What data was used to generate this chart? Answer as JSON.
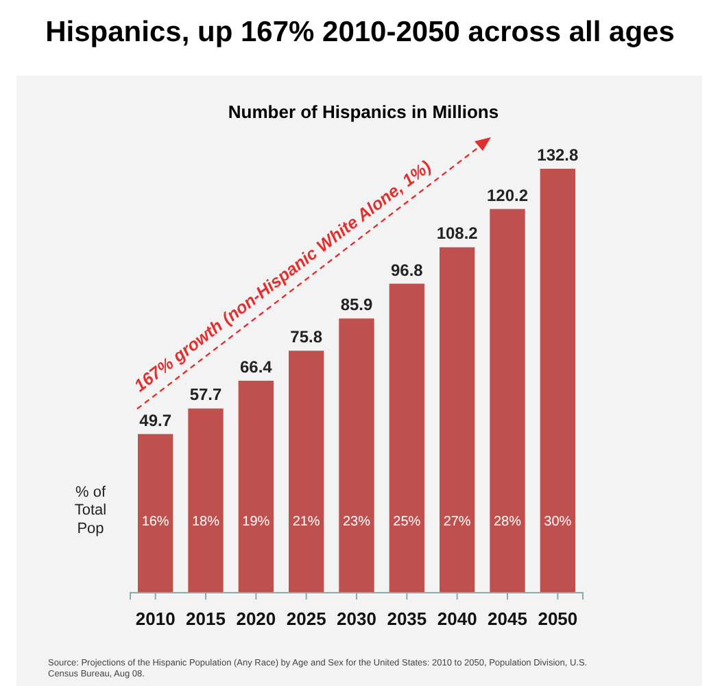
{
  "chart_data": {
    "type": "bar",
    "title": "Hispanics, up 167% 2010-2050 across all ages",
    "subtitle": "Number of Hispanics in Millions",
    "categories": [
      "2010",
      "2015",
      "2020",
      "2025",
      "2030",
      "2035",
      "2040",
      "2045",
      "2050"
    ],
    "values": [
      49.7,
      57.7,
      66.4,
      75.8,
      85.9,
      96.8,
      108.2,
      120.2,
      132.8
    ],
    "color": "#c0504d",
    "data_labels": true,
    "annotations": [
      "167% growth (non-Hispanic White Alone, 1%)",
      "% of Total Pop",
      "16%",
      "18%",
      "19%",
      "21%",
      "23%",
      "25%",
      "27%",
      "28%",
      "30%",
      "Source: Projections of the Hispanic Population (Any Race) by Age and Sex for the United States: 2010 to 2050, Population Division, U.S. Census Bureau, Aug 08."
    ]
  }
}
